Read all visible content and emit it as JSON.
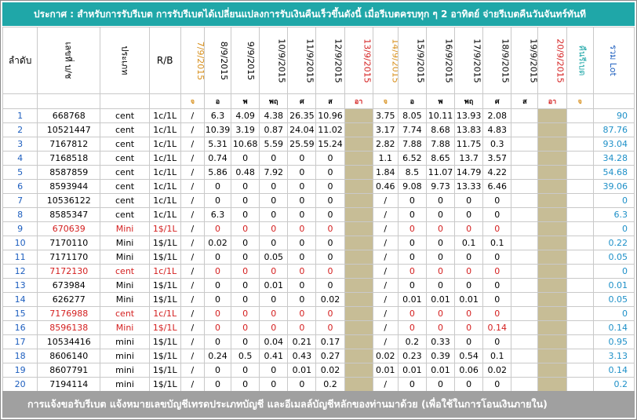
{
  "banner": "ประกาศ : สำหรับการรับรีเบต  การรับรีเบตได้เปลี่ยนแปลงการรับเงินคืนเร็วขึ้นดังนี้   เมื่อรีเบตครบทุก ๆ 2 อาทิตย์ จ่ายรีเบตคืนวันจันทร์ทันที",
  "footer": "การแจ้งขอรับรีเบต  แจ้งหมายเลขบัญชีเทรดประเภทบัญชี และอีเมลล์บัญชีหลักของท่านมาด้วย   (เพื่อใช้ในการโอนเงินภายใน)",
  "headers": {
    "no": "ลำดับ",
    "account": "เลขที่ บ/ช",
    "type": "ประเภท",
    "rb": "R/B",
    "dates": [
      "7/9/2015",
      "8/9/2015",
      "9/9/2015",
      "10/9/2015",
      "11/9/2015",
      "12/9/2015",
      "13/9/2015",
      "14/9/2015",
      "15/9/2015",
      "16/9/2015",
      "17/9/2015",
      "18/9/2015",
      "19/9/2015",
      "20/9/2015"
    ],
    "payback": "คืนรีเบต",
    "total": "รวม Lot"
  },
  "day_abbr": [
    "จ",
    "อ",
    "พ",
    "พฤ",
    "ศ",
    "ส",
    "อา",
    "จ",
    "อ",
    "พ",
    "พฤ",
    "ศ",
    "ส",
    "อา",
    "จ"
  ],
  "colors": {
    "banner": "#1fa7a8",
    "footer": "#a0a0a0",
    "weekend_fill": "#c7bd96",
    "monday": "#d8901d",
    "sunday": "#d42020",
    "total": "#1e90c8",
    "red_row": "#d42020"
  },
  "rows": [
    {
      "no": "1",
      "acct": "668768",
      "type": "cent",
      "rb": "1c/1L",
      "d": [
        "/",
        "6.3",
        "4.09",
        "4.38",
        "26.35",
        "10.96",
        "",
        "3.75",
        "8.05",
        "10.11",
        "13.93",
        "2.08",
        "",
        ""
      ],
      "total": "90",
      "red": false
    },
    {
      "no": "2",
      "acct": "10521447",
      "type": "cent",
      "rb": "1c/1L",
      "d": [
        "/",
        "10.39",
        "3.19",
        "0.87",
        "24.04",
        "11.02",
        "",
        "3.17",
        "7.74",
        "8.68",
        "13.83",
        "4.83",
        "",
        ""
      ],
      "total": "87.76",
      "red": false
    },
    {
      "no": "3",
      "acct": "7167812",
      "type": "cent",
      "rb": "1c/1L",
      "d": [
        "/",
        "5.31",
        "10.68",
        "5.59",
        "25.59",
        "15.24",
        "",
        "2.82",
        "7.88",
        "7.88",
        "11.75",
        "0.3",
        "",
        ""
      ],
      "total": "93.04",
      "red": false
    },
    {
      "no": "4",
      "acct": "7168518",
      "type": "cent",
      "rb": "1c/1L",
      "d": [
        "/",
        "0.74",
        "0",
        "0",
        "0",
        "0",
        "",
        "1.1",
        "6.52",
        "8.65",
        "13.7",
        "3.57",
        "",
        ""
      ],
      "total": "34.28",
      "red": false
    },
    {
      "no": "5",
      "acct": "8587859",
      "type": "cent",
      "rb": "1c/1L",
      "d": [
        "/",
        "5.86",
        "0.48",
        "7.92",
        "0",
        "0",
        "",
        "1.84",
        "8.5",
        "11.07",
        "14.79",
        "4.22",
        "",
        ""
      ],
      "total": "54.68",
      "red": false
    },
    {
      "no": "6",
      "acct": "8593944",
      "type": "cent",
      "rb": "1c/1L",
      "d": [
        "/",
        "0",
        "0",
        "0",
        "0",
        "0",
        "",
        "0.46",
        "9.08",
        "9.73",
        "13.33",
        "6.46",
        "",
        ""
      ],
      "total": "39.06",
      "red": false
    },
    {
      "no": "7",
      "acct": "10536122",
      "type": "cent",
      "rb": "1c/1L",
      "d": [
        "/",
        "0",
        "0",
        "0",
        "0",
        "0",
        "",
        "/",
        "0",
        "0",
        "0",
        "0",
        "",
        ""
      ],
      "total": "0",
      "red": false
    },
    {
      "no": "8",
      "acct": "8585347",
      "type": "cent",
      "rb": "1c/1L",
      "d": [
        "/",
        "6.3",
        "0",
        "0",
        "0",
        "0",
        "",
        "/",
        "0",
        "0",
        "0",
        "0",
        "",
        ""
      ],
      "total": "6.3",
      "red": false
    },
    {
      "no": "9",
      "acct": "670639",
      "type": "Mini",
      "rb": "1$/1L",
      "d": [
        "/",
        "0",
        "0",
        "0",
        "0",
        "0",
        "",
        "/",
        "0",
        "0",
        "0",
        "0",
        "",
        ""
      ],
      "total": "0",
      "red": true
    },
    {
      "no": "10",
      "acct": "7170110",
      "type": "Mini",
      "rb": "1$/1L",
      "d": [
        "/",
        "0.02",
        "0",
        "0",
        "0",
        "0",
        "",
        "/",
        "0",
        "0",
        "0.1",
        "0.1",
        "",
        ""
      ],
      "total": "0.22",
      "red": false
    },
    {
      "no": "11",
      "acct": "7171170",
      "type": "Mini",
      "rb": "1$/1L",
      "d": [
        "/",
        "0",
        "0",
        "0.05",
        "0",
        "0",
        "",
        "/",
        "0",
        "0",
        "0",
        "0",
        "",
        ""
      ],
      "total": "0.05",
      "red": false
    },
    {
      "no": "12",
      "acct": "7172130",
      "type": "cent",
      "rb": "1c/1L",
      "d": [
        "/",
        "0",
        "0",
        "0",
        "0",
        "0",
        "",
        "/",
        "0",
        "0",
        "0",
        "0",
        "",
        ""
      ],
      "total": "0",
      "red": true
    },
    {
      "no": "13",
      "acct": "673984",
      "type": "Mini",
      "rb": "1$/1L",
      "d": [
        "/",
        "0",
        "0",
        "0.01",
        "0",
        "0",
        "",
        "/",
        "0",
        "0",
        "0",
        "0",
        "",
        ""
      ],
      "total": "0.01",
      "red": false
    },
    {
      "no": "14",
      "acct": "626277",
      "type": "Mini",
      "rb": "1$/1L",
      "d": [
        "/",
        "0",
        "0",
        "0",
        "0",
        "0.02",
        "",
        "/",
        "0.01",
        "0.01",
        "0.01",
        "0",
        "",
        ""
      ],
      "total": "0.05",
      "red": false
    },
    {
      "no": "15",
      "acct": "7176988",
      "type": "cent",
      "rb": "1c/1L",
      "d": [
        "/",
        "0",
        "0",
        "0",
        "0",
        "0",
        "",
        "/",
        "0",
        "0",
        "0",
        "0",
        "",
        ""
      ],
      "total": "0",
      "red": true
    },
    {
      "no": "16",
      "acct": "8596138",
      "type": "Mini",
      "rb": "1$/1L",
      "d": [
        "/",
        "0",
        "0",
        "0",
        "0",
        "0",
        "",
        "/",
        "0",
        "0",
        "0",
        "0.14",
        "",
        ""
      ],
      "total": "0.14",
      "red": true
    },
    {
      "no": "17",
      "acct": "10534416",
      "type": "mini",
      "rb": "1$/1L",
      "d": [
        "/",
        "0",
        "0",
        "0.04",
        "0.21",
        "0.17",
        "",
        "/",
        "0.2",
        "0.33",
        "0",
        "0",
        "",
        ""
      ],
      "total": "0.95",
      "red": false
    },
    {
      "no": "18",
      "acct": "8606140",
      "type": "mini",
      "rb": "1$/1L",
      "d": [
        "/",
        "0.24",
        "0.5",
        "0.41",
        "0.43",
        "0.27",
        "",
        "0.02",
        "0.23",
        "0.39",
        "0.54",
        "0.1",
        "",
        ""
      ],
      "total": "3.13",
      "red": false
    },
    {
      "no": "19",
      "acct": "8607791",
      "type": "mini",
      "rb": "1$/1L",
      "d": [
        "/",
        "0",
        "0",
        "0",
        "0.01",
        "0.02",
        "",
        "0.01",
        "0.01",
        "0.01",
        "0.06",
        "0.02",
        "",
        ""
      ],
      "total": "0.14",
      "red": false
    },
    {
      "no": "20",
      "acct": "7194114",
      "type": "mini",
      "rb": "1$/1L",
      "d": [
        "/",
        "0",
        "0",
        "0",
        "0",
        "0.2",
        "",
        "/",
        "0",
        "0",
        "0",
        "0",
        "",
        ""
      ],
      "total": "0.2",
      "red": false
    }
  ]
}
